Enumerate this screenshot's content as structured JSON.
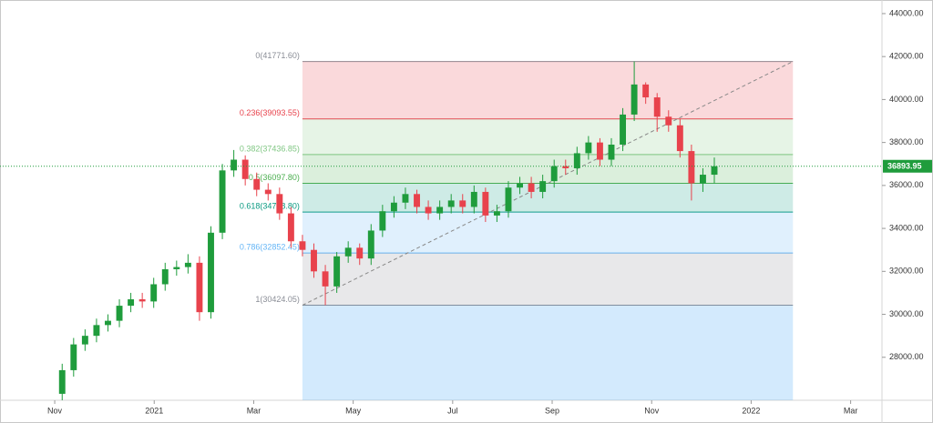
{
  "chart_data": {
    "type": "candlestick",
    "x": [
      1.15,
      1.38,
      1.61,
      1.84,
      2.07,
      2.3,
      2.53,
      2.76,
      2.99,
      3.22,
      3.45,
      3.68,
      3.91,
      4.14,
      4.37,
      4.6,
      4.83,
      5.06,
      5.29,
      5.52,
      5.75,
      5.98,
      6.21,
      6.44,
      6.67,
      6.9,
      7.13,
      7.36,
      7.59,
      7.82,
      8.05,
      8.28,
      8.51,
      8.74,
      8.97,
      9.2,
      9.43,
      9.66,
      9.89,
      10.12,
      10.35,
      10.58,
      10.81,
      11.04,
      11.27,
      11.5,
      11.73,
      11.96,
      12.19,
      12.42,
      12.65,
      12.88,
      13.11,
      13.34,
      13.57,
      13.8,
      14.03,
      14.26
    ],
    "open": [
      26300,
      27400,
      28600,
      29000,
      29500,
      29700,
      30400,
      30700,
      30600,
      31400,
      32100,
      32200,
      32400,
      30100,
      33800,
      36700,
      37200,
      36300,
      35800,
      35600,
      34700,
      33400,
      33000,
      32000,
      31300,
      32700,
      33100,
      32600,
      33900,
      34800,
      35200,
      35600,
      35000,
      34700,
      35000,
      35300,
      35000,
      35700,
      34600,
      34800,
      35900,
      36100,
      35700,
      36200,
      36900,
      36800,
      37500,
      38000,
      37200,
      37900,
      39300,
      40700,
      40100,
      39200,
      38800,
      37600,
      36100,
      36500
    ],
    "high": [
      27700,
      28900,
      29300,
      29800,
      30000,
      30700,
      31000,
      31000,
      31700,
      32400,
      32500,
      32800,
      32700,
      34100,
      37000,
      37650,
      37400,
      36600,
      36100,
      35900,
      35000,
      33700,
      33300,
      32300,
      32900,
      33400,
      33300,
      34200,
      35100,
      35500,
      35900,
      35800,
      35300,
      35300,
      35600,
      35600,
      36000,
      35900,
      35100,
      36200,
      36400,
      36400,
      36500,
      37200,
      37200,
      37800,
      38300,
      38200,
      38200,
      39600,
      41771.6,
      40800,
      40300,
      39500,
      39100,
      37900,
      36800,
      37300
    ],
    "low": [
      26000,
      27100,
      28300,
      28700,
      29200,
      29400,
      30100,
      30300,
      30300,
      31100,
      31800,
      31900,
      29700,
      29800,
      33500,
      36400,
      36000,
      35500,
      35300,
      34400,
      33100,
      32700,
      31700,
      30424.05,
      31000,
      32400,
      32300,
      32300,
      33600,
      34500,
      34900,
      34700,
      34400,
      34400,
      34700,
      34700,
      34700,
      34300,
      34300,
      34500,
      35600,
      35400,
      35400,
      35900,
      36500,
      36500,
      37200,
      36900,
      36900,
      37600,
      39000,
      39800,
      38500,
      38500,
      37300,
      35300,
      35700,
      36100
    ],
    "close": [
      27400,
      28600,
      29000,
      29500,
      29700,
      30400,
      30700,
      30600,
      31400,
      32100,
      32200,
      32400,
      30100,
      33800,
      36700,
      37200,
      36300,
      35800,
      35600,
      34700,
      33400,
      33000,
      32000,
      31300,
      32700,
      33100,
      32600,
      33900,
      34800,
      35200,
      35600,
      35000,
      34700,
      35000,
      35300,
      35000,
      35700,
      34600,
      34800,
      35900,
      36100,
      35700,
      36200,
      36900,
      36800,
      37500,
      38000,
      37200,
      37900,
      39300,
      40700,
      40100,
      39200,
      38800,
      37600,
      36100,
      36500,
      36893.95
    ],
    "up_color": "#1f9c3c",
    "down_color": "#e8424c",
    "xlim": [
      -0.1,
      17.63
    ],
    "xticks": [
      {
        "value": 1,
        "label": "Nov"
      },
      {
        "value": 3,
        "label": "2021"
      },
      {
        "value": 5,
        "label": "Mar"
      },
      {
        "value": 7,
        "label": "May"
      },
      {
        "value": 9,
        "label": "Jul"
      },
      {
        "value": 11,
        "label": "Sep"
      },
      {
        "value": 13,
        "label": "Nov"
      },
      {
        "value": 15,
        "label": "2022"
      },
      {
        "value": 17,
        "label": "Mar"
      }
    ],
    "ylim": [
      26000,
      44400
    ],
    "yticks": [
      {
        "value": 28000,
        "label": "28000.00"
      },
      {
        "value": 30000,
        "label": "30000.00"
      },
      {
        "value": 32000,
        "label": "32000.00"
      },
      {
        "value": 34000,
        "label": "34000.00"
      },
      {
        "value": 36000,
        "label": "36000.00"
      },
      {
        "value": 38000,
        "label": "38000.00"
      },
      {
        "value": 40000,
        "label": "40000.00"
      },
      {
        "value": 42000,
        "label": "42000.00"
      },
      {
        "value": 44000,
        "label": "44000.00"
      }
    ],
    "last_price": 36893.95,
    "last_price_color": "#1f9c3c",
    "fib_x": [
      5.98,
      15.84
    ],
    "fib_levels": [
      {
        "label": "0(41771.60)",
        "value": 41771.6,
        "color": "#8a8d96"
      },
      {
        "label": "0.236(39093.55)",
        "value": 39093.55,
        "color": "#e8424c"
      },
      {
        "label": "0.382(37436.85)",
        "value": 37436.85,
        "color": "#81c784"
      },
      {
        "label": "0.5(36097.80)",
        "value": 36097.8,
        "color": "#4caf50"
      },
      {
        "label": "0.618(34758.80)",
        "value": 34758.8,
        "color": "#089981"
      },
      {
        "label": "0.786(32852.45)",
        "value": 32852.45,
        "color": "#64b5f6"
      },
      {
        "label": "1(30424.05)",
        "value": 30424.05,
        "color": "#8a8d96"
      }
    ]
  }
}
